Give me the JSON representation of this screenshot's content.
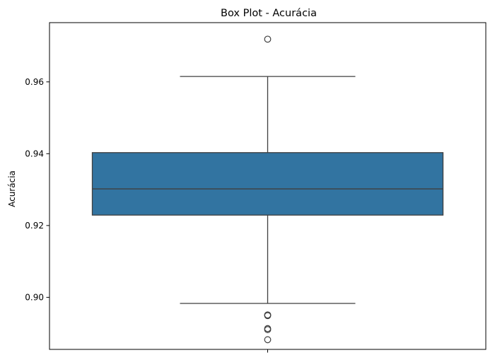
{
  "chart_data": {
    "type": "box",
    "title": "Box Plot - Acurácia",
    "xlabel": "",
    "ylabel": "Acurácia",
    "ylim": [
      0.8855,
      0.9765
    ],
    "yticks": [
      {
        "value": 0.9,
        "label": "0.90"
      },
      {
        "value": 0.92,
        "label": "0.92"
      },
      {
        "value": 0.94,
        "label": "0.94"
      },
      {
        "value": 0.96,
        "label": "0.96"
      }
    ],
    "grid": false,
    "box": {
      "whisker_low": 0.8983,
      "q1": 0.9229,
      "median": 0.9302,
      "q3": 0.9403,
      "whisker_high": 0.9615,
      "outliers": [
        0.9719,
        0.8951,
        0.8949,
        0.8913,
        0.891,
        0.8882
      ],
      "color": "#3274a1",
      "line_color": "#3f3f3f"
    }
  }
}
